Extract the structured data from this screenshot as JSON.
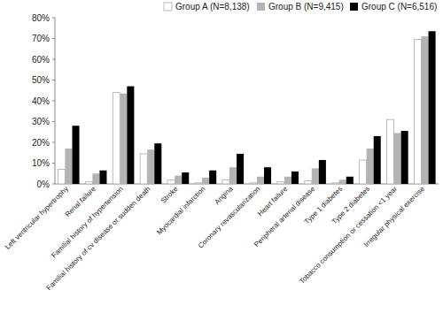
{
  "chart_data": {
    "type": "bar",
    "categories": [
      "Left ventricular hypertrophy",
      "Renal failure",
      "Familial history of hypertension",
      "Familial history of cv disease or sudden death",
      "Stroke",
      "Myocardial infarction",
      "Angina",
      "Coronary revascularization",
      "Heart failure",
      "Peripheral arterial disease",
      "Type 1 diabetes",
      "Type 2 diabetes",
      "Tobacco consumption or cessation <1 year",
      "Irregular physical exercise"
    ],
    "series": [
      {
        "name": "Group A (N=8,138)",
        "color": "#ffffff",
        "values": [
          7,
          1,
          44,
          14.5,
          2,
          0.5,
          2,
          0.5,
          1,
          1.5,
          0.5,
          11.5,
          31,
          69.5
        ]
      },
      {
        "name": "Group B (N=9,415)",
        "color": "#b3b3b3",
        "values": [
          17,
          5,
          43.5,
          16.5,
          4,
          3,
          8,
          3.5,
          3.5,
          7.5,
          2,
          17,
          24.5,
          71
        ]
      },
      {
        "name": "Group C (N=6,516)",
        "color": "#000000",
        "values": [
          28,
          6.5,
          47,
          19.5,
          5.5,
          6.5,
          14.5,
          8,
          6,
          11.5,
          3.5,
          23,
          25.5,
          73.5
        ]
      }
    ],
    "ylim": [
      0,
      80
    ],
    "yticks": [
      {
        "value": 0,
        "label": "0%"
      },
      {
        "value": 10,
        "label": "10%"
      },
      {
        "value": 20,
        "label": "20%"
      },
      {
        "value": 30,
        "label": "30%"
      },
      {
        "value": 40,
        "label": "40%"
      },
      {
        "value": 50,
        "label": "50%"
      },
      {
        "value": 60,
        "label": "60%"
      },
      {
        "value": 70,
        "label": "70%"
      },
      {
        "value": 80,
        "label": "80%"
      }
    ],
    "grid": false,
    "legend": "top"
  }
}
